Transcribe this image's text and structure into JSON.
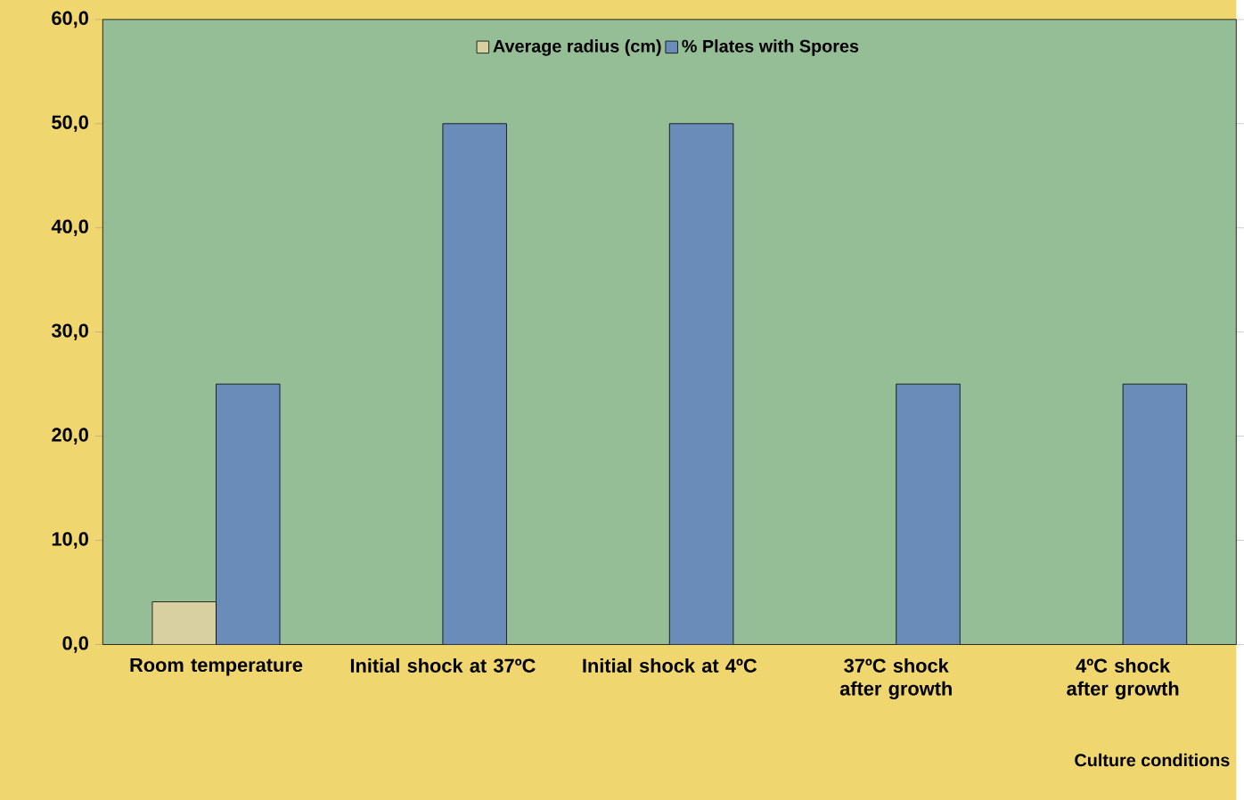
{
  "chart_data": {
    "type": "bar",
    "xlabel": "Culture conditions",
    "categories": [
      "Room temperature",
      "Initial shock at 37ºC",
      "Initial shock at 4ºC",
      "37ºC shock after growth",
      "4ºC shock after growth"
    ],
    "series": [
      {
        "name": "Average radius (cm)",
        "color": "#d8d0a0",
        "values": [
          4.1,
          null,
          null,
          null,
          null
        ]
      },
      {
        "name": "% Plates with Spores",
        "color": "#6a8cb8",
        "values": [
          25,
          50,
          50,
          25,
          25
        ]
      }
    ],
    "ylim": [
      0,
      60
    ],
    "yticks": [
      {
        "value": 0,
        "label": "0,0"
      },
      {
        "value": 10,
        "label": "10,0"
      },
      {
        "value": 20,
        "label": "20,0"
      },
      {
        "value": 30,
        "label": "30,0"
      },
      {
        "value": 40,
        "label": "40,0"
      },
      {
        "value": 50,
        "label": "50,0"
      },
      {
        "value": 60,
        "label": "60,0"
      }
    ],
    "legend": "top",
    "grid": false
  }
}
